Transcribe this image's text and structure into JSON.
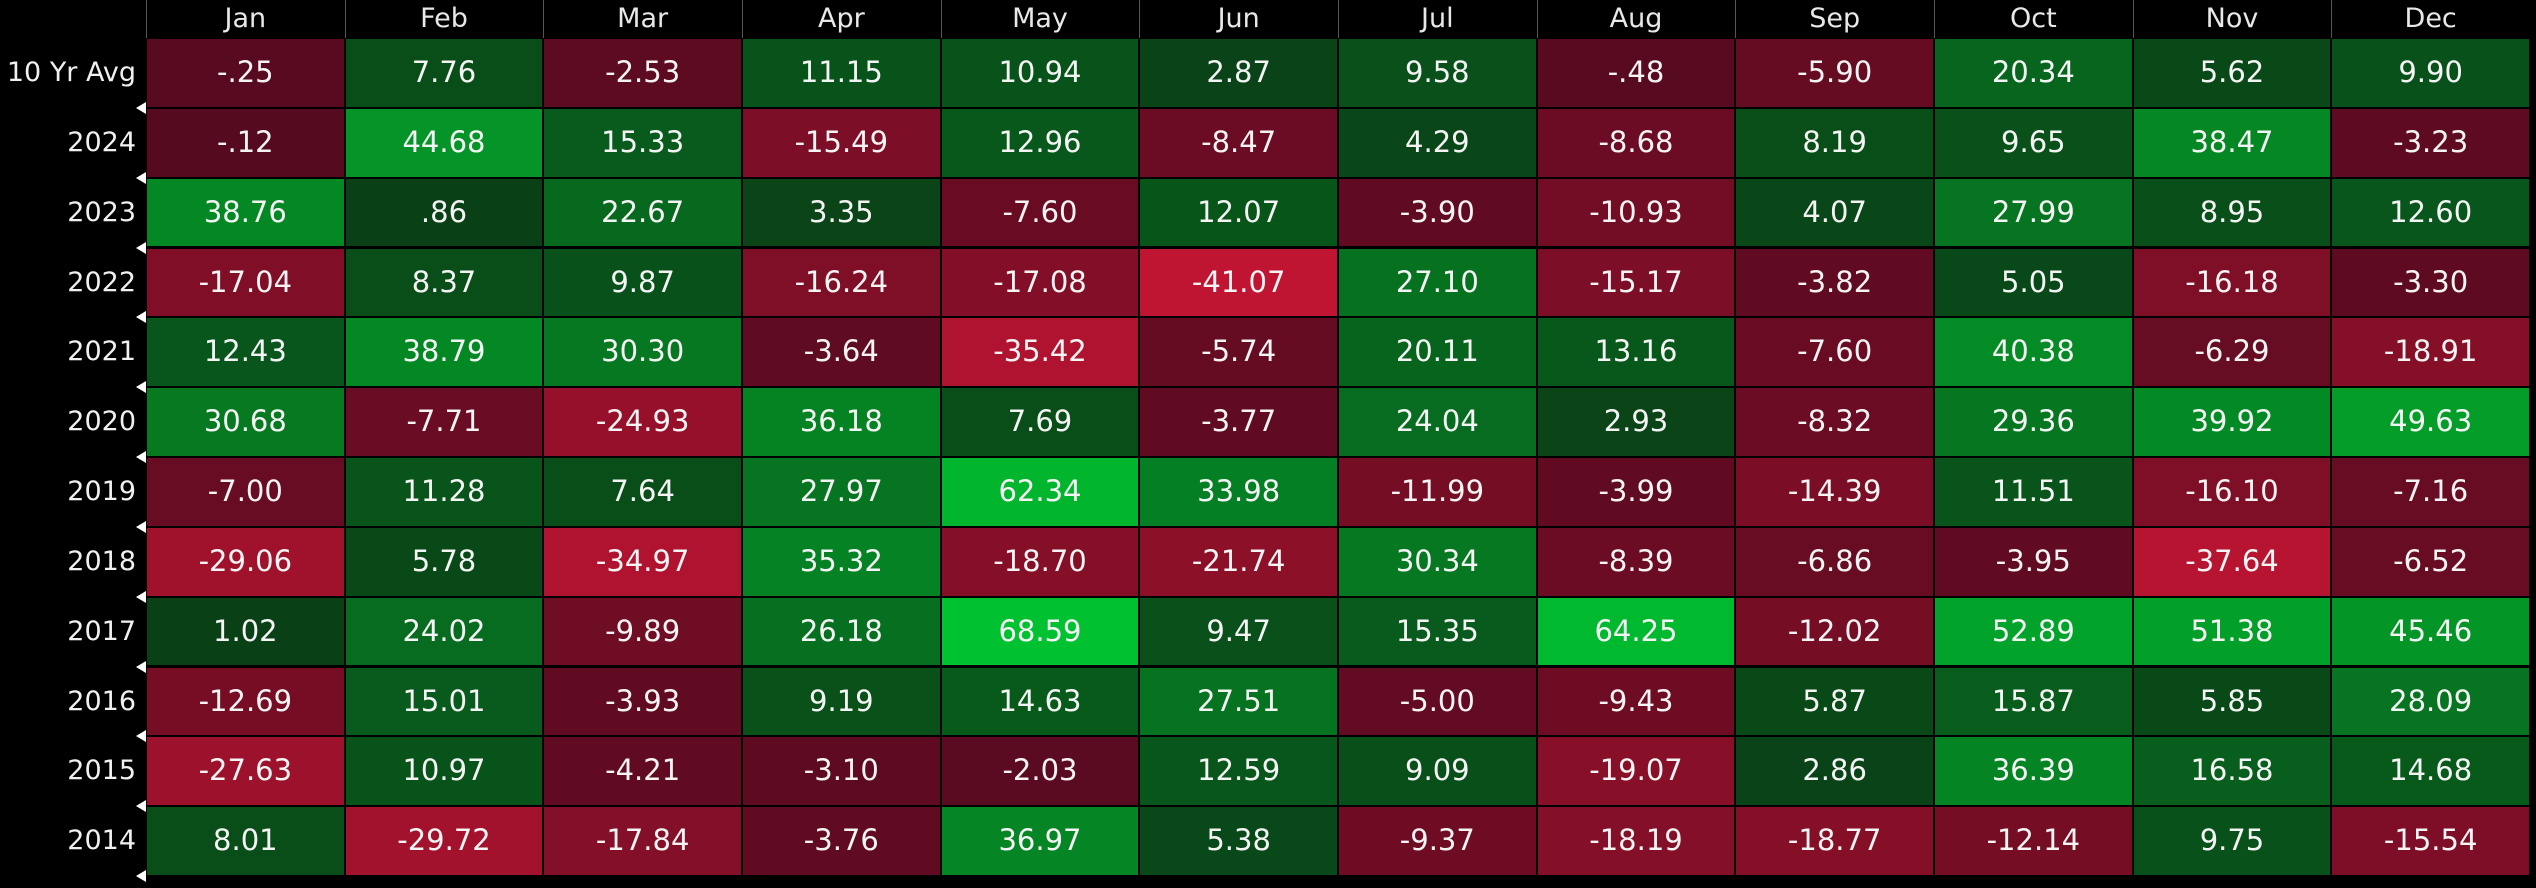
{
  "table": {
    "columns": [
      "Jan",
      "Feb",
      "Mar",
      "Apr",
      "May",
      "Jun",
      "Jul",
      "Aug",
      "Sep",
      "Oct",
      "Nov",
      "Dec"
    ],
    "rows": [
      {
        "label": "10 Yr Avg",
        "cells": [
          "-.25",
          "7.76",
          "-2.53",
          "11.15",
          "10.94",
          "2.87",
          "9.58",
          "-.48",
          "-5.90",
          "20.34",
          "5.62",
          "9.90"
        ]
      },
      {
        "label": "2024",
        "cells": [
          "-.12",
          "44.68",
          "15.33",
          "-15.49",
          "12.96",
          "-8.47",
          "4.29",
          "-8.68",
          "8.19",
          "9.65",
          "38.47",
          "-3.23"
        ]
      },
      {
        "label": "2023",
        "cells": [
          "38.76",
          ".86",
          "22.67",
          "3.35",
          "-7.60",
          "12.07",
          "-3.90",
          "-10.93",
          "4.07",
          "27.99",
          "8.95",
          "12.60"
        ]
      },
      {
        "label": "2022",
        "cells": [
          "-17.04",
          "8.37",
          "9.87",
          "-16.24",
          "-17.08",
          "-41.07",
          "27.10",
          "-15.17",
          "-3.82",
          "5.05",
          "-16.18",
          "-3.30"
        ]
      },
      {
        "label": "2021",
        "cells": [
          "12.43",
          "38.79",
          "30.30",
          "-3.64",
          "-35.42",
          "-5.74",
          "20.11",
          "13.16",
          "-7.60",
          "40.38",
          "-6.29",
          "-18.91"
        ]
      },
      {
        "label": "2020",
        "cells": [
          "30.68",
          "-7.71",
          "-24.93",
          "36.18",
          "7.69",
          "-3.77",
          "24.04",
          "2.93",
          "-8.32",
          "29.36",
          "39.92",
          "49.63"
        ]
      },
      {
        "label": "2019",
        "cells": [
          "-7.00",
          "11.28",
          "7.64",
          "27.97",
          "62.34",
          "33.98",
          "-11.99",
          "-3.99",
          "-14.39",
          "11.51",
          "-16.10",
          "-7.16"
        ]
      },
      {
        "label": "2018",
        "cells": [
          "-29.06",
          "5.78",
          "-34.97",
          "35.32",
          "-18.70",
          "-21.74",
          "30.34",
          "-8.39",
          "-6.86",
          "-3.95",
          "-37.64",
          "-6.52"
        ]
      },
      {
        "label": "2017",
        "cells": [
          "1.02",
          "24.02",
          "-9.89",
          "26.18",
          "68.59",
          "9.47",
          "15.35",
          "64.25",
          "-12.02",
          "52.89",
          "51.38",
          "45.46"
        ]
      },
      {
        "label": "2016",
        "cells": [
          "-12.69",
          "15.01",
          "-3.93",
          "9.19",
          "14.63",
          "27.51",
          "-5.00",
          "-9.43",
          "5.87",
          "15.87",
          "5.85",
          "28.09"
        ]
      },
      {
        "label": "2015",
        "cells": [
          "-27.63",
          "10.97",
          "-4.21",
          "-3.10",
          "-2.03",
          "12.59",
          "9.09",
          "-19.07",
          "2.86",
          "36.39",
          "16.58",
          "14.68"
        ]
      },
      {
        "label": "2014",
        "cells": [
          "8.01",
          "-29.72",
          "-17.84",
          "-3.76",
          "36.97",
          "5.38",
          "-9.37",
          "-18.19",
          "-18.77",
          "-12.14",
          "9.75",
          "-15.54"
        ]
      }
    ]
  }
}
